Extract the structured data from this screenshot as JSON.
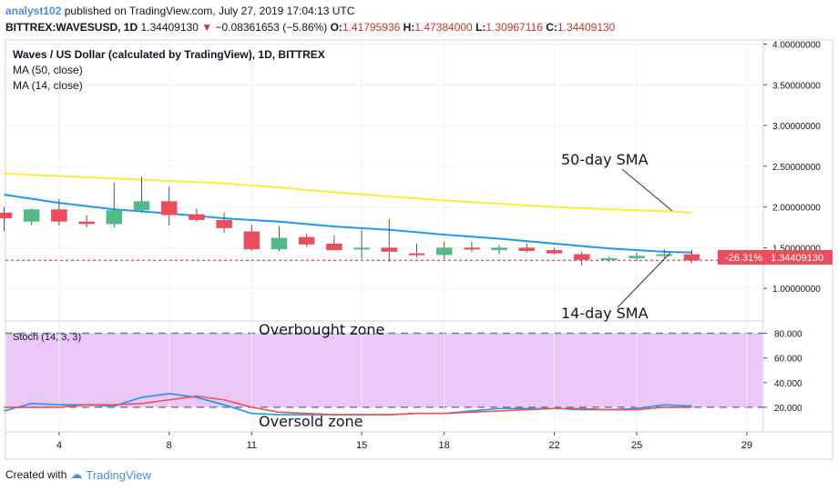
{
  "header": {
    "username": "analyst102",
    "published_text": "published on TradingView.com, July 27, 2019 17:04:13 UTC",
    "symbol": "BITTREX:WAVESUSD, 1D",
    "last": "1.34409130",
    "change_arrow": "▼",
    "change": "−0.08361653 (−5.86%)",
    "o_label": "O:",
    "o_value": "1.41795936",
    "h_label": "H:",
    "h_value": "1.47384000",
    "l_label": "L:",
    "l_value": "1.30967116",
    "c_label": "C:",
    "c_value": "1.34409130"
  },
  "legend": {
    "title": "Waves / US Dollar (calculated by TradingView), 1D, BITTREX",
    "ma50": "MA (50, close)",
    "ma14": "MA (14, close)",
    "stoch": "Stoch (14, 3, 3)"
  },
  "annotations": {
    "sma50": "50-day SMA",
    "sma14": "14-day SMA",
    "overbought": "Overbought zone",
    "oversold": "Oversold zone"
  },
  "price_tag": {
    "pct": "-26.31%",
    "value": "1.34409130"
  },
  "footer": {
    "created_with": "Created with",
    "brand": "TradingView"
  },
  "colors": {
    "up": "#53b987",
    "down": "#eb4d5c",
    "sma50": "#ffeb3b",
    "sma14": "#2196f3",
    "stoch_k": "#2196f3",
    "stoch_d": "#ef5350",
    "stoch_band": "#e9c7f6",
    "price_line": "#eb4d5c"
  },
  "chart_data": [
    {
      "type": "candlestick",
      "title": "Waves / US Dollar (calculated by TradingView), 1D, BITTREX",
      "x_ticks": [
        {
          "day": 4,
          "label": "4"
        },
        {
          "day": 8,
          "label": "8"
        },
        {
          "day": 11,
          "label": "11"
        },
        {
          "day": 15,
          "label": "15"
        },
        {
          "day": 18,
          "label": "18"
        },
        {
          "day": 22,
          "label": "22"
        },
        {
          "day": 25,
          "label": "25"
        },
        {
          "day": 29,
          "label": "29"
        }
      ],
      "y_ticks": [
        "1.00000000",
        "1.50000000",
        "2.00000000",
        "2.50000000",
        "3.00000000",
        "3.50000000",
        "4.00000000"
      ],
      "y_tick_values": [
        1.0,
        1.5,
        2.0,
        2.5,
        3.0,
        3.5,
        4.0
      ],
      "ylim": [
        0.6,
        4.05
      ],
      "xlim": [
        2.05,
        29.6
      ],
      "candles": [
        {
          "day": 2,
          "open": 1.93,
          "high": 2.0,
          "low": 1.7,
          "close": 1.86
        },
        {
          "day": 3,
          "open": 1.82,
          "high": 1.98,
          "low": 1.78,
          "close": 1.97
        },
        {
          "day": 4,
          "open": 1.97,
          "high": 2.1,
          "low": 1.77,
          "close": 1.82
        },
        {
          "day": 5,
          "open": 1.82,
          "high": 1.9,
          "low": 1.75,
          "close": 1.79
        },
        {
          "day": 6,
          "open": 1.79,
          "high": 2.3,
          "low": 1.75,
          "close": 1.96
        },
        {
          "day": 7,
          "open": 1.96,
          "high": 2.37,
          "low": 1.93,
          "close": 2.07
        },
        {
          "day": 8,
          "open": 2.07,
          "high": 2.25,
          "low": 1.77,
          "close": 1.9
        },
        {
          "day": 9,
          "open": 1.91,
          "high": 1.98,
          "low": 1.82,
          "close": 1.84
        },
        {
          "day": 10,
          "open": 1.84,
          "high": 1.93,
          "low": 1.68,
          "close": 1.74
        },
        {
          "day": 11,
          "open": 1.7,
          "high": 1.78,
          "low": 1.46,
          "close": 1.48
        },
        {
          "day": 12,
          "open": 1.48,
          "high": 1.76,
          "low": 1.46,
          "close": 1.62
        },
        {
          "day": 13,
          "open": 1.63,
          "high": 1.67,
          "low": 1.51,
          "close": 1.54
        },
        {
          "day": 14,
          "open": 1.55,
          "high": 1.65,
          "low": 1.47,
          "close": 1.47
        },
        {
          "day": 15,
          "open": 1.48,
          "high": 1.72,
          "low": 1.36,
          "close": 1.5
        },
        {
          "day": 16,
          "open": 1.5,
          "high": 1.85,
          "low": 1.33,
          "close": 1.45
        },
        {
          "day": 17,
          "open": 1.43,
          "high": 1.55,
          "low": 1.38,
          "close": 1.41
        },
        {
          "day": 18,
          "open": 1.41,
          "high": 1.57,
          "low": 1.36,
          "close": 1.5
        },
        {
          "day": 19,
          "open": 1.5,
          "high": 1.57,
          "low": 1.45,
          "close": 1.49
        },
        {
          "day": 20,
          "open": 1.47,
          "high": 1.53,
          "low": 1.42,
          "close": 1.5
        },
        {
          "day": 21,
          "open": 1.5,
          "high": 1.55,
          "low": 1.44,
          "close": 1.46
        },
        {
          "day": 22,
          "open": 1.47,
          "high": 1.5,
          "low": 1.42,
          "close": 1.43
        },
        {
          "day": 23,
          "open": 1.42,
          "high": 1.45,
          "low": 1.28,
          "close": 1.35
        },
        {
          "day": 24,
          "open": 1.35,
          "high": 1.39,
          "low": 1.32,
          "close": 1.37
        },
        {
          "day": 25,
          "open": 1.37,
          "high": 1.44,
          "low": 1.34,
          "close": 1.4
        },
        {
          "day": 26,
          "open": 1.4,
          "high": 1.48,
          "low": 1.37,
          "close": 1.42
        },
        {
          "day": 27,
          "open": 1.418,
          "high": 1.474,
          "low": 1.31,
          "close": 1.344
        }
      ],
      "series": [
        {
          "name": "MA (50, close)",
          "x": [
            2,
            4,
            6,
            8,
            10,
            12,
            14,
            16,
            18,
            20,
            22,
            24,
            26,
            27
          ],
          "y": [
            2.41,
            2.38,
            2.35,
            2.32,
            2.29,
            2.24,
            2.18,
            2.13,
            2.08,
            2.04,
            2.0,
            1.97,
            1.95,
            1.93
          ]
        },
        {
          "name": "MA (14, close)",
          "x": [
            2,
            4,
            6,
            8,
            10,
            12,
            14,
            16,
            18,
            20,
            22,
            24,
            26,
            27
          ],
          "y": [
            2.15,
            2.05,
            1.97,
            1.92,
            1.86,
            1.82,
            1.76,
            1.72,
            1.66,
            1.61,
            1.55,
            1.49,
            1.45,
            1.44
          ]
        }
      ],
      "last_price": 1.3440913,
      "last_price_pct": "-26.31%"
    },
    {
      "type": "line",
      "title": "Stoch (14, 3, 3)",
      "y_ticks": [
        "20.000",
        "40.000",
        "60.000",
        "80.000"
      ],
      "y_tick_values": [
        20,
        40,
        60,
        80
      ],
      "ylim": [
        0,
        90
      ],
      "bands": [
        20,
        80
      ],
      "series": [
        {
          "name": "%K",
          "x": [
            2,
            3,
            4,
            5,
            6,
            7,
            8,
            9,
            10,
            11,
            12,
            13,
            14,
            15,
            16,
            17,
            18,
            19,
            20,
            21,
            22,
            23,
            24,
            25,
            26,
            27
          ],
          "y": [
            17,
            23,
            22,
            22,
            21,
            28,
            31,
            28,
            22,
            15,
            14,
            14,
            14,
            14,
            14,
            15,
            15,
            17,
            19,
            19,
            19,
            18,
            18,
            19,
            22,
            21
          ]
        },
        {
          "name": "%D",
          "x": [
            2,
            3,
            4,
            5,
            6,
            7,
            8,
            9,
            10,
            11,
            12,
            13,
            14,
            15,
            16,
            17,
            18,
            19,
            20,
            21,
            22,
            23,
            24,
            25,
            26,
            27
          ],
          "y": [
            20,
            20,
            20,
            22,
            22,
            23,
            26,
            29,
            26,
            20,
            16,
            15,
            14,
            14,
            14,
            15,
            15,
            16,
            17,
            18,
            19,
            19,
            18,
            18,
            20,
            20
          ]
        }
      ]
    }
  ]
}
